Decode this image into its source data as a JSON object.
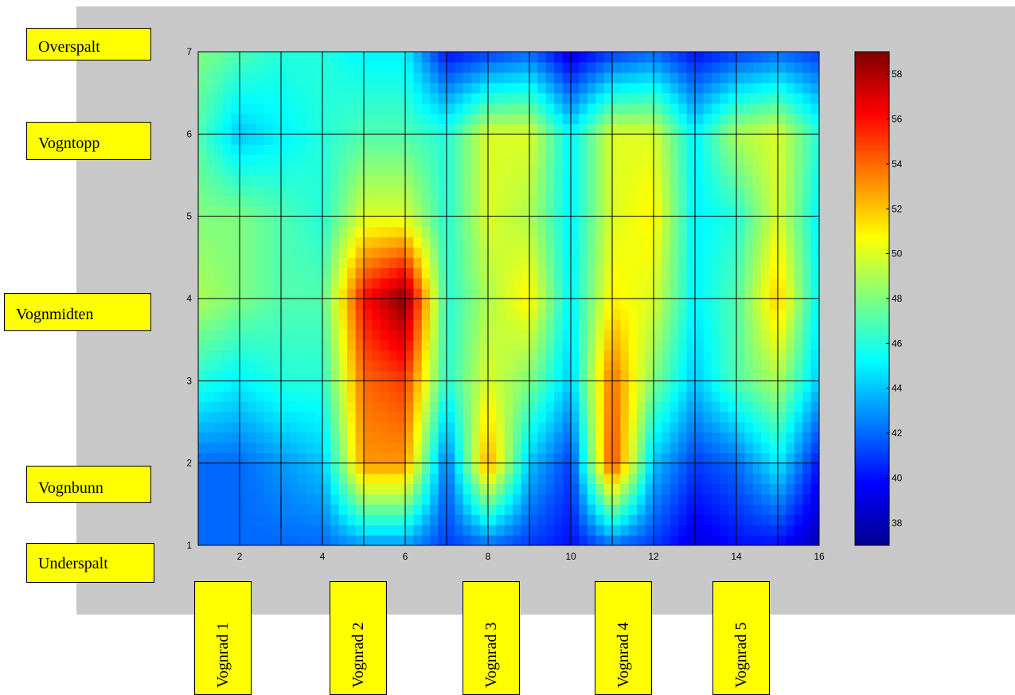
{
  "chart_data": {
    "type": "heatmap",
    "title": "",
    "xlabel": "",
    "ylabel": "",
    "xlim": [
      1,
      16
    ],
    "ylim": [
      1,
      7
    ],
    "x": [
      1,
      2,
      3,
      4,
      5,
      6,
      7,
      8,
      9,
      10,
      11,
      12,
      13,
      14,
      15,
      16
    ],
    "y": [
      1,
      2,
      3,
      4,
      5,
      6,
      7
    ],
    "x_ticks": [
      "2",
      "4",
      "6",
      "8",
      "10",
      "12",
      "14",
      "16"
    ],
    "y_ticks": [
      "1",
      "2",
      "3",
      "4",
      "5",
      "6",
      "7"
    ],
    "grid": true,
    "colormap": "jet",
    "colorbar": {
      "min": 37,
      "max": 59,
      "ticks": [
        "38",
        "40",
        "42",
        "44",
        "46",
        "48",
        "50",
        "52",
        "54",
        "56",
        "58"
      ]
    },
    "z": [
      [
        42,
        42,
        42,
        42,
        43,
        43,
        41,
        42,
        41,
        40,
        42,
        41,
        39,
        40,
        40,
        38
      ],
      [
        42,
        42,
        43,
        44,
        53,
        53,
        42,
        53,
        44,
        41,
        55,
        44,
        41,
        42,
        45,
        40
      ],
      [
        46,
        45,
        46,
        46,
        54,
        55,
        46,
        50,
        48,
        44,
        54,
        48,
        44,
        47,
        49,
        44
      ],
      [
        49,
        48,
        47,
        47,
        56,
        59,
        46,
        49,
        51,
        45,
        51,
        50,
        45,
        47,
        52,
        45
      ],
      [
        48,
        48,
        47,
        46,
        50,
        50,
        46,
        50,
        49,
        45,
        50,
        51,
        45,
        46,
        50,
        45
      ],
      [
        47,
        44,
        45,
        46,
        47,
        47,
        46,
        50,
        50,
        45,
        50,
        50,
        45,
        49,
        50,
        46
      ],
      [
        48,
        47,
        46,
        46,
        45,
        45,
        40,
        41,
        42,
        39,
        41,
        42,
        40,
        41,
        42,
        41
      ]
    ]
  },
  "side_labels": {
    "rows": [
      "Overspalt",
      "Vogntopp",
      "Vognmidten",
      "Vognbunn",
      "Underspalt"
    ],
    "columns": [
      "Vognrad 1",
      "Vognrad 2",
      "Vognrad 3",
      "Vognrad 4",
      "Vognrad 5"
    ]
  }
}
